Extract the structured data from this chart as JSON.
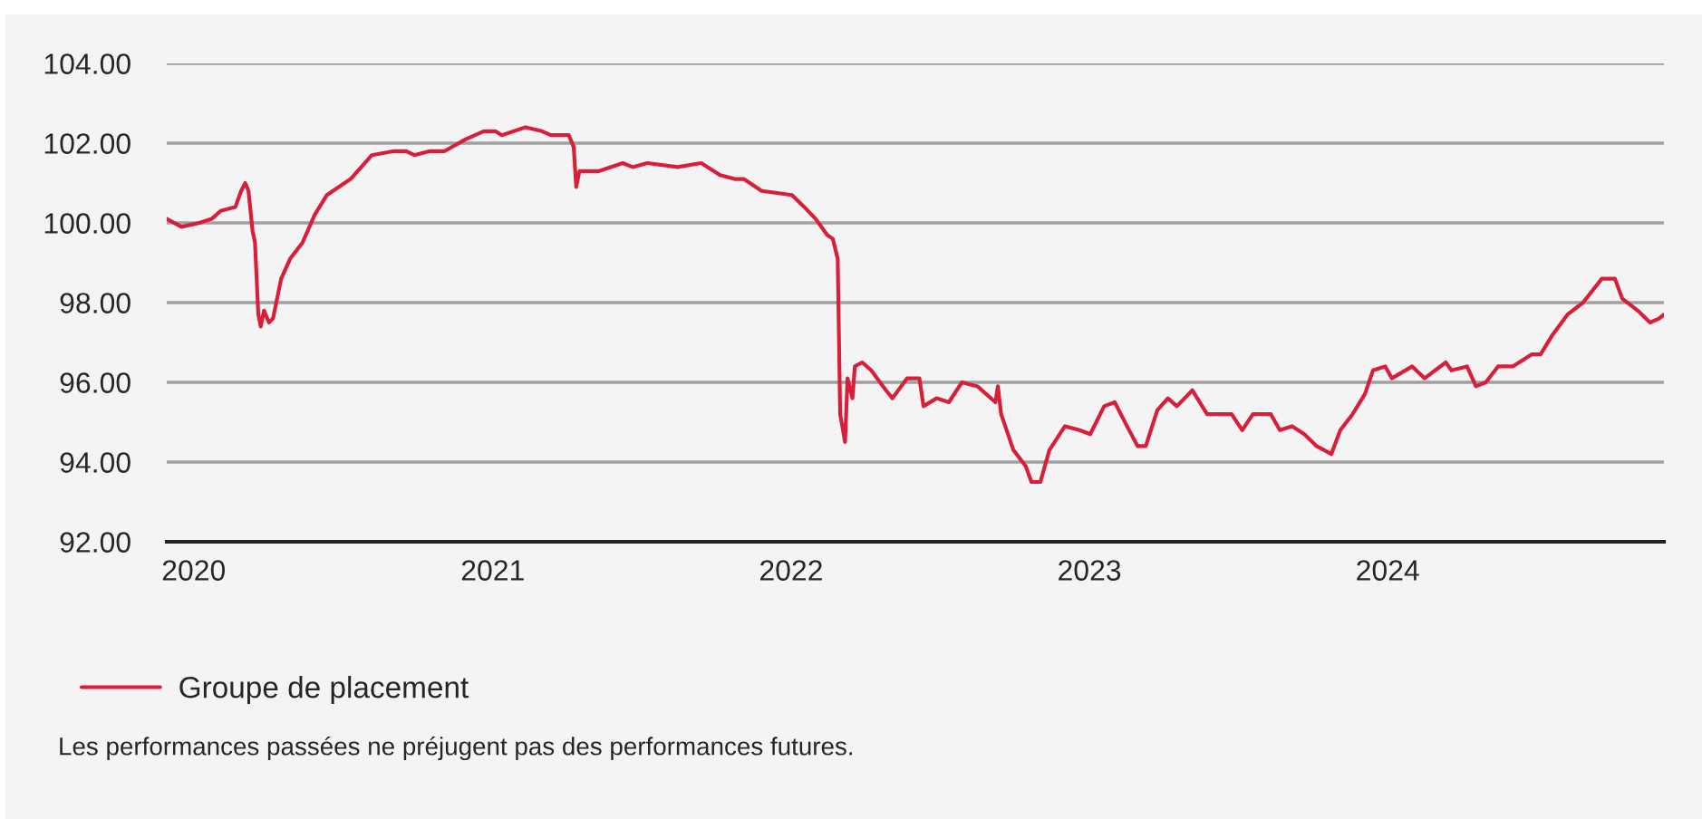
{
  "chart_data": {
    "type": "line",
    "x": [
      "2019-11-29",
      "2019-12-17",
      "2020-01-08",
      "2020-01-23",
      "2020-02-03",
      "2020-02-21",
      "2020-02-28",
      "2020-03-04",
      "2020-03-08",
      "2020-03-13",
      "2020-03-16",
      "2020-03-20",
      "2020-03-23",
      "2020-03-27",
      "2020-04-02",
      "2020-04-07",
      "2020-04-17",
      "2020-04-28",
      "2020-05-13",
      "2020-05-28",
      "2020-06-12",
      "2020-07-11",
      "2020-08-06",
      "2020-09-02",
      "2020-09-17",
      "2020-09-27",
      "2020-10-16",
      "2020-11-03",
      "2020-11-29",
      "2020-12-21",
      "2021-01-04",
      "2021-01-12",
      "2021-02-10",
      "2021-03-02",
      "2021-03-13",
      "2021-04-04",
      "2021-04-10",
      "2021-04-13",
      "2021-04-17",
      "2021-05-11",
      "2021-06-09",
      "2021-06-21",
      "2021-07-09",
      "2021-08-15",
      "2021-09-13",
      "2021-10-06",
      "2021-10-24",
      "2021-11-04",
      "2021-11-26",
      "2022-01-02",
      "2022-01-17",
      "2022-01-31",
      "2022-02-14",
      "2022-02-21",
      "2022-02-27",
      "2022-03-02",
      "2022-03-08",
      "2022-03-11",
      "2022-03-17",
      "2022-03-20",
      "2022-03-29",
      "2022-04-09",
      "2022-04-27",
      "2022-05-05",
      "2022-05-23",
      "2022-06-07",
      "2022-06-12",
      "2022-06-28",
      "2022-07-13",
      "2022-07-29",
      "2022-08-17",
      "2022-09-08",
      "2022-09-11",
      "2022-09-15",
      "2022-09-30",
      "2022-10-15",
      "2022-10-22",
      "2022-11-02",
      "2022-11-13",
      "2022-12-02",
      "2022-12-20",
      "2023-01-02",
      "2023-01-19",
      "2023-02-01",
      "2023-02-16",
      "2023-03-01",
      "2023-03-11",
      "2023-03-25",
      "2023-04-07",
      "2023-04-18",
      "2023-05-07",
      "2023-05-25",
      "2023-06-24",
      "2023-07-07",
      "2023-07-20",
      "2023-08-11",
      "2023-08-22",
      "2023-09-06",
      "2023-09-21",
      "2023-10-06",
      "2023-10-24",
      "2023-11-04",
      "2023-11-19",
      "2023-12-04",
      "2023-12-14",
      "2023-12-29",
      "2024-01-06",
      "2024-01-31",
      "2024-02-15",
      "2024-03-12",
      "2024-03-19",
      "2024-04-07",
      "2024-04-18",
      "2024-04-30",
      "2024-05-15",
      "2024-06-02",
      "2024-06-25",
      "2024-07-06",
      "2024-07-21",
      "2024-08-08",
      "2024-08-27",
      "2024-09-19",
      "2024-10-05",
      "2024-10-14",
      "2024-11-02",
      "2024-11-17",
      "2024-11-28",
      "2024-12-04"
    ],
    "series": [
      {
        "name": "Groupe de placement",
        "color": "#d91e3a",
        "values": [
          100.1,
          99.9,
          100.0,
          100.1,
          100.3,
          100.4,
          100.8,
          101.0,
          100.8,
          99.8,
          99.5,
          97.7,
          97.4,
          97.8,
          97.5,
          97.6,
          98.6,
          99.1,
          99.5,
          100.2,
          100.7,
          101.1,
          101.7,
          101.8,
          101.8,
          101.7,
          101.8,
          101.8,
          102.1,
          102.3,
          102.3,
          102.2,
          102.4,
          102.3,
          102.2,
          102.2,
          101.9,
          100.9,
          101.3,
          101.3,
          101.5,
          101.4,
          101.5,
          101.4,
          101.5,
          101.2,
          101.1,
          101.1,
          100.8,
          100.7,
          100.4,
          100.1,
          99.7,
          99.6,
          99.1,
          95.2,
          94.5,
          96.1,
          95.6,
          96.4,
          96.5,
          96.3,
          95.8,
          95.6,
          96.1,
          96.1,
          95.4,
          95.6,
          95.5,
          96.0,
          95.9,
          95.5,
          95.9,
          95.2,
          94.3,
          93.9,
          93.5,
          93.5,
          94.3,
          94.9,
          94.8,
          94.7,
          95.4,
          95.5,
          94.9,
          94.4,
          94.4,
          95.3,
          95.6,
          95.4,
          95.8,
          95.2,
          95.2,
          94.8,
          95.2,
          95.2,
          94.8,
          94.9,
          94.7,
          94.4,
          94.2,
          94.8,
          95.2,
          95.7,
          96.3,
          96.4,
          96.1,
          96.4,
          96.1,
          96.5,
          96.3,
          96.4,
          95.9,
          96.0,
          96.4,
          96.4,
          96.7,
          96.7,
          97.2,
          97.7,
          98.0,
          98.6,
          98.6,
          98.1,
          97.8,
          97.5,
          97.6,
          97.7
        ]
      }
    ],
    "xlim": [
      "2019-11-29",
      "2024-12-04"
    ],
    "xticks": [
      {
        "value": "2020-01-01",
        "label": "2020"
      },
      {
        "value": "2021-01-01",
        "label": "2021"
      },
      {
        "value": "2022-01-01",
        "label": "2022"
      },
      {
        "value": "2023-01-01",
        "label": "2023"
      },
      {
        "value": "2024-01-01",
        "label": "2024"
      }
    ],
    "ylim": [
      92,
      104
    ],
    "yticks": [
      {
        "value": 92,
        "label": "92.00"
      },
      {
        "value": 94,
        "label": "94.00"
      },
      {
        "value": 96,
        "label": "96.00"
      },
      {
        "value": 98,
        "label": "98.00"
      },
      {
        "value": 100,
        "label": "100.00"
      },
      {
        "value": 102,
        "label": "102.00"
      },
      {
        "value": 104,
        "label": "104.00"
      }
    ],
    "grid": "y",
    "legend": "bottom left",
    "line_style": "solid",
    "marker": "none",
    "annotations": [
      "Les performances passées ne préjugent pas des performances futures."
    ]
  }
}
